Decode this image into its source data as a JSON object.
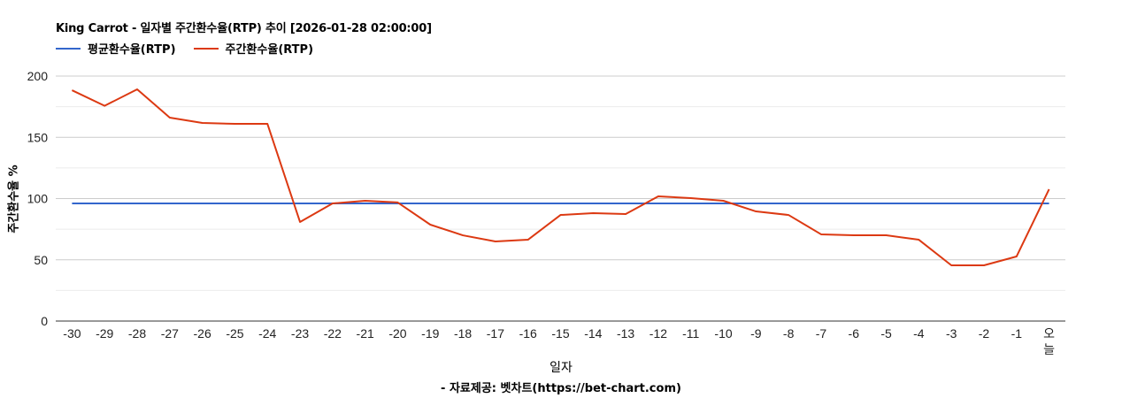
{
  "header": {
    "title": "King Carrot - 일자별 주간환수율(RTP) 추이 [2026-01-28 02:00:00]"
  },
  "legend": [
    {
      "label": "평균환수율(RTP)",
      "color": "#3366cc"
    },
    {
      "label": "주간환수율(RTP)",
      "color": "#dc3912"
    }
  ],
  "axes": {
    "x_title": "일자",
    "y_title": "주간환수율 %",
    "y_ticks": [
      "0",
      "50",
      "100",
      "150",
      "200"
    ]
  },
  "footer": {
    "credit": "- 자료제공: 벳차트(https://bet-chart.com)"
  },
  "chart_data": {
    "type": "line",
    "title": "King Carrot - 일자별 주간환수율(RTP) 추이 [2026-01-28 02:00:00]",
    "xlabel": "일자",
    "ylabel": "주간환수율 %",
    "ylim": [
      0,
      200
    ],
    "y_ticks": [
      0,
      50,
      100,
      150,
      200
    ],
    "grid": true,
    "legend_position": "top",
    "categories": [
      "-30",
      "-29",
      "-28",
      "-27",
      "-26",
      "-25",
      "-24",
      "-23",
      "-22",
      "-21",
      "-20",
      "-19",
      "-18",
      "-17",
      "-16",
      "-15",
      "-14",
      "-13",
      "-12",
      "-11",
      "-10",
      "-9",
      "-8",
      "-7",
      "-6",
      "-5",
      "-4",
      "-3",
      "-2",
      "-1",
      "오늘"
    ],
    "series": [
      {
        "name": "평균환수율(RTP)",
        "color": "#3366cc",
        "values": [
          96.0,
          96.0,
          96.0,
          96.0,
          96.0,
          96.0,
          96.0,
          96.0,
          96.0,
          96.0,
          96.0,
          96.0,
          96.0,
          96.0,
          96.0,
          96.0,
          96.0,
          96.0,
          96.0,
          96.0,
          96.0,
          96.0,
          96.0,
          96.0,
          96.0,
          96.0,
          96.0,
          96.0,
          96.0,
          96.0,
          96.0
        ]
      },
      {
        "name": "주간환수율(RTP)",
        "color": "#dc3912",
        "values": [
          188.4,
          175.7,
          189.2,
          166.1,
          161.7,
          161.0,
          161.0,
          80.9,
          96.0,
          98.2,
          96.8,
          78.7,
          70.0,
          65.0,
          66.4,
          86.6,
          88.1,
          87.4,
          101.8,
          100.4,
          98.2,
          89.5,
          86.6,
          70.8,
          70.0,
          70.0,
          66.4,
          45.5,
          45.5,
          52.7,
          107.6
        ]
      }
    ]
  }
}
